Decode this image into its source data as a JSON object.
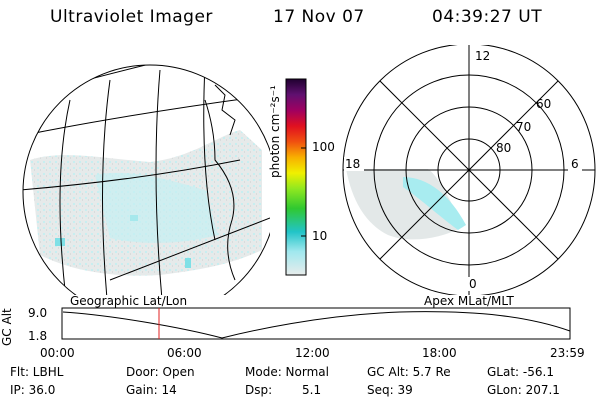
{
  "header": {
    "instrument": "Ultraviolet Imager",
    "date": "17 Nov 07",
    "time": "04:39:27 UT"
  },
  "colorbar": {
    "unit_label": "photon cm⁻²s⁻¹",
    "ticks": [
      "100",
      "10"
    ]
  },
  "polar_plot": {
    "mlt_labels": [
      "12",
      "6",
      "0",
      "18"
    ],
    "lat_labels": [
      "60",
      "70",
      "80"
    ]
  },
  "map_labels": {
    "left": "Geographic Lat/Lon",
    "right": "Apex MLat/MLT"
  },
  "altitude_strip": {
    "ylabel": "GC Alt",
    "y_ticks": [
      "9.0",
      "1.8"
    ],
    "x_ticks": [
      "00:00",
      "06:00",
      "12:00",
      "18:00",
      "23:59"
    ]
  },
  "info": {
    "flt": "Flt: LBHL",
    "ip": "IP: 36.0",
    "door": "Door: Open",
    "gain": "Gain: 14",
    "mode": "Mode: Normal",
    "dsp_label": "Dsp:",
    "dsp_value": "5.1",
    "gcalt": "GC Alt: 5.7 Re",
    "seq": "Seq: 39",
    "glat": "GLat: -56.1",
    "glon": "GLon: 207.1"
  }
}
